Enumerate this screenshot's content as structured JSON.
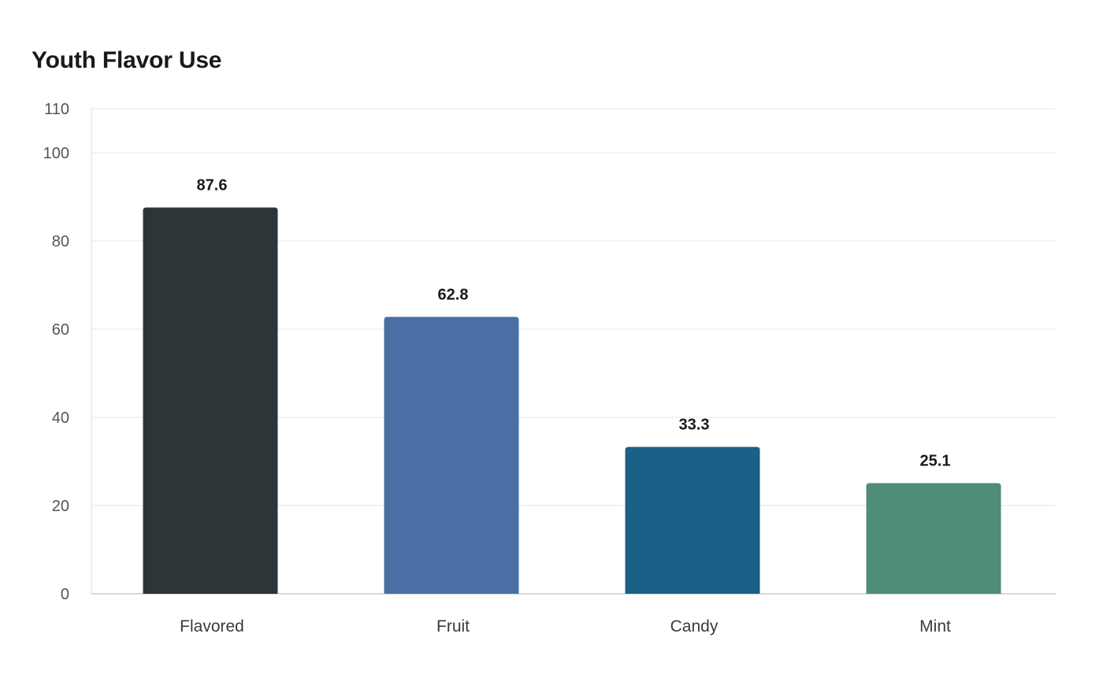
{
  "chart_data": {
    "type": "bar",
    "title": "Youth Flavor Use",
    "xlabel": "",
    "ylabel": "",
    "categories": [
      "Flavored",
      "Fruit",
      "Candy",
      "Mint"
    ],
    "values": [
      87.6,
      62.8,
      33.3,
      25.1
    ],
    "data_labels": [
      "87.6",
      "62.8",
      "33.3",
      "25.1"
    ],
    "colors": [
      "#2e3538",
      "#4a6fa5",
      "#196187",
      "#4f8c7a"
    ],
    "ylim": [
      0,
      110
    ],
    "yticks": [
      0,
      20,
      40,
      60,
      80,
      100,
      110
    ],
    "grid": true,
    "legend": "none"
  }
}
